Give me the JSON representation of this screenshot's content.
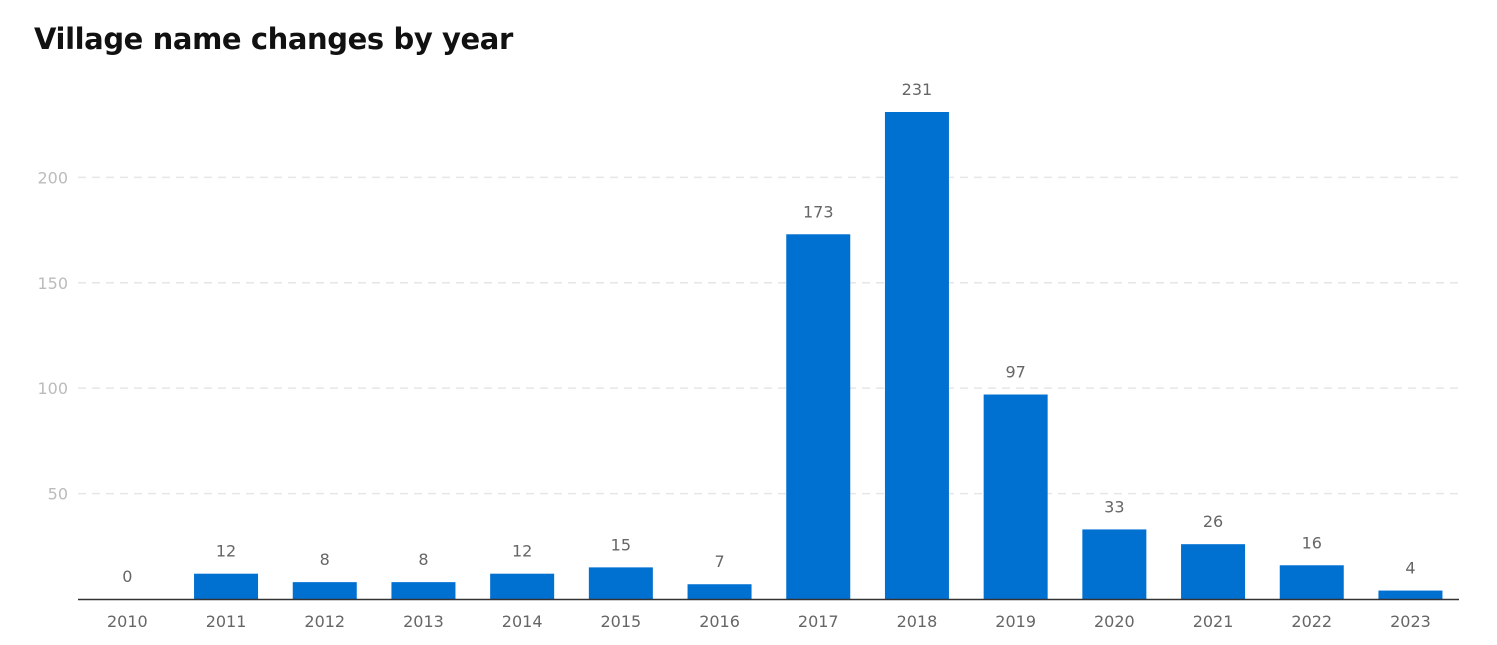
{
  "chart_data": {
    "type": "bar",
    "title": "Village name changes by year",
    "xlabel": "",
    "ylabel": "",
    "categories": [
      "2010",
      "2011",
      "2012",
      "2013",
      "2014",
      "2015",
      "2016",
      "2017",
      "2018",
      "2019",
      "2020",
      "2021",
      "2022",
      "2023"
    ],
    "values": [
      0,
      12,
      8,
      8,
      12,
      15,
      7,
      173,
      231,
      97,
      33,
      26,
      16,
      4
    ],
    "ylim": [
      0,
      231
    ],
    "yticks": [
      50,
      100,
      150,
      200
    ],
    "grid": true,
    "data_labels": true,
    "colors": {
      "bar": "#0070d1",
      "axis": "#333333",
      "grid": "#e6e6e6",
      "y_tick_text": "#bbbbbb",
      "x_tick_text": "#666666",
      "data_label_text": "#666666"
    }
  }
}
